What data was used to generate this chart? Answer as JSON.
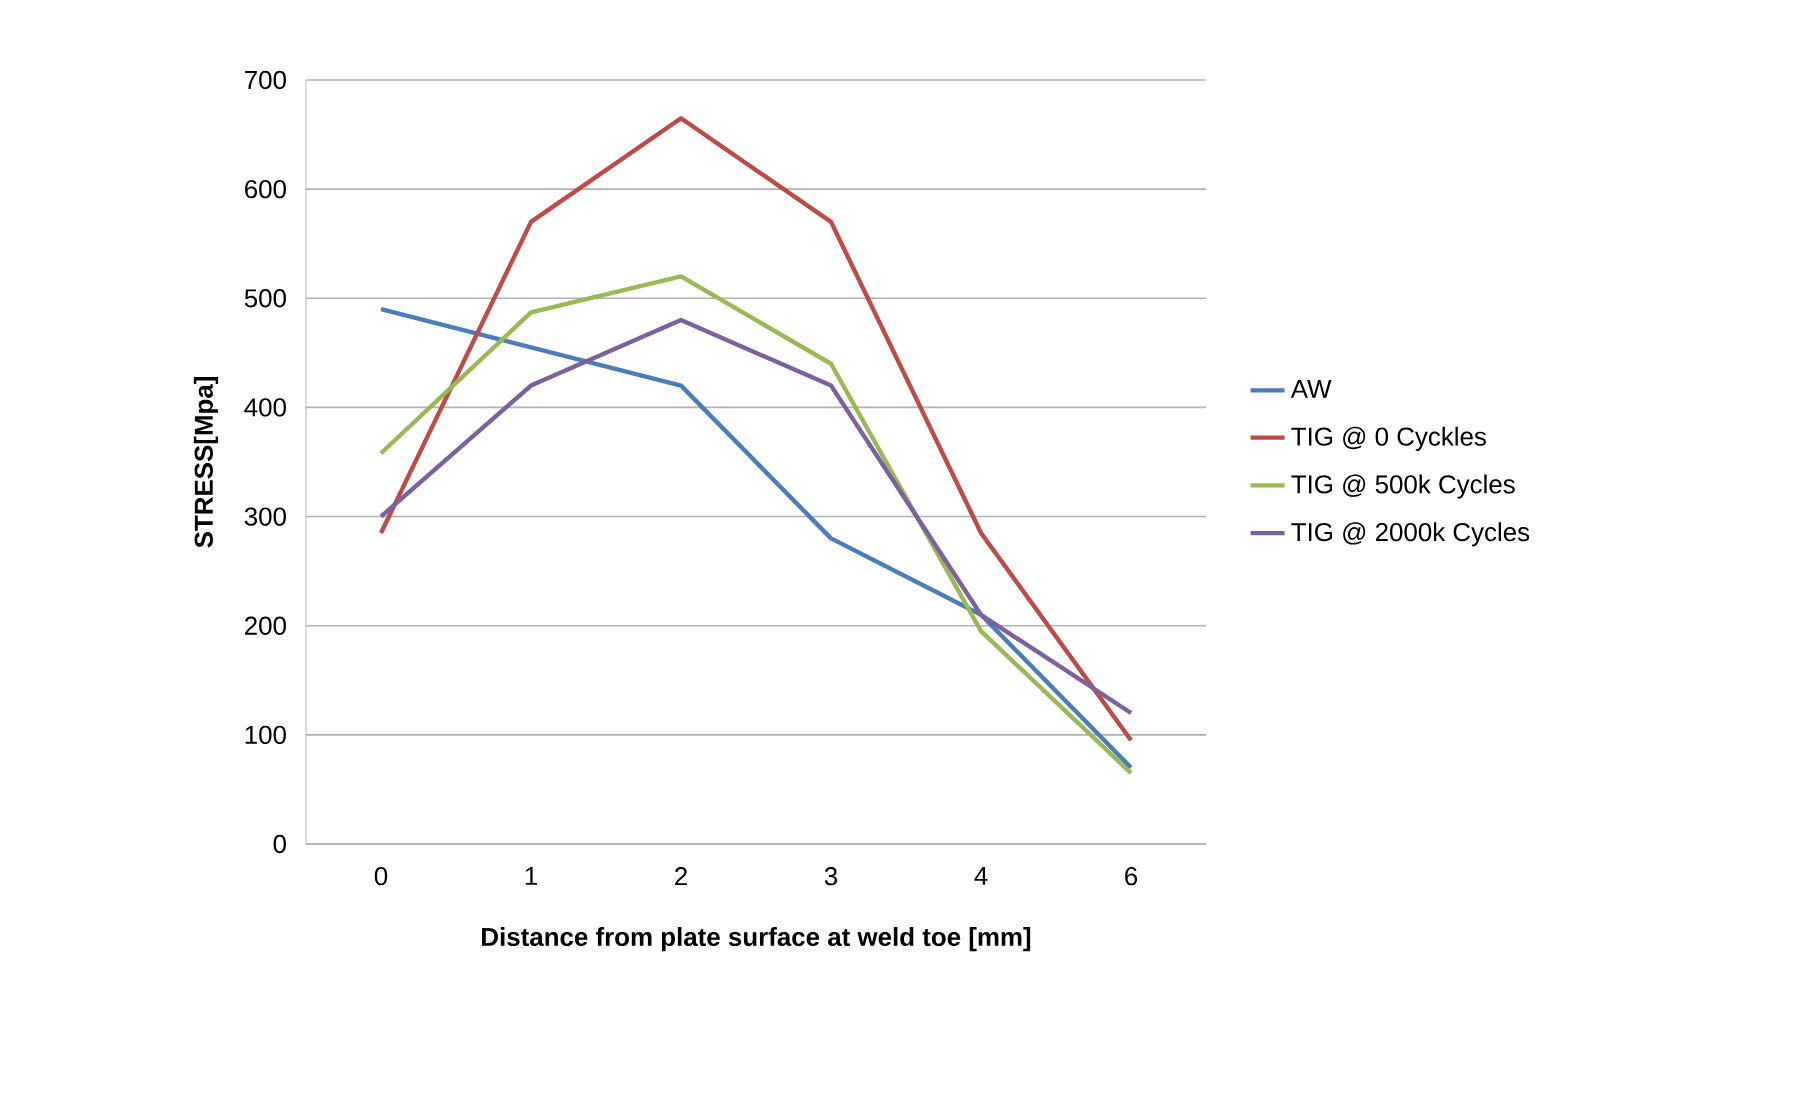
{
  "chart_data": {
    "type": "line",
    "xlabel": "Distance from plate surface at weld toe [mm]",
    "ylabel": "STRESS[Mpa]",
    "categories": [
      "0",
      "1",
      "2",
      "3",
      "4",
      "6"
    ],
    "series": [
      {
        "name": "AW",
        "color": "#4a7ebb",
        "values": [
          490,
          455,
          420,
          280,
          210,
          70
        ]
      },
      {
        "name": "TIG @ 0 Cyckles",
        "color": "#be4b48",
        "values": [
          285,
          570,
          665,
          570,
          285,
          95
        ]
      },
      {
        "name": "TIG  @ 500k Cycles",
        "color": "#98b954",
        "values": [
          358,
          487,
          520,
          440,
          195,
          65
        ]
      },
      {
        "name": "TIG @ 2000k Cycles",
        "color": "#7d60a0",
        "values": [
          300,
          420,
          480,
          420,
          210,
          120
        ]
      }
    ],
    "ylim": [
      0,
      700
    ],
    "yticks": [
      0,
      100,
      200,
      300,
      400,
      500,
      600,
      700
    ],
    "grid": "y",
    "legend": "right",
    "marker": "none",
    "line_style": "solid"
  }
}
